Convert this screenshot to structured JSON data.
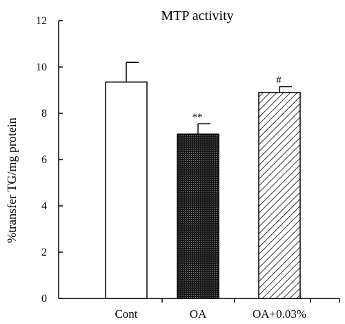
{
  "chart_data": {
    "type": "bar",
    "title": "MTP activity",
    "xlabel": "",
    "ylabel": "%transfer TG/mg protein",
    "ylim": [
      0,
      12
    ],
    "yticks": [
      0,
      2,
      4,
      6,
      8,
      10,
      12
    ],
    "categories": [
      "Cont",
      "OA",
      "OA+0.03%"
    ],
    "values": [
      9.35,
      7.1,
      8.9
    ],
    "errors": [
      0.85,
      0.45,
      0.25
    ],
    "annotations": [
      "",
      "**",
      "#"
    ],
    "fills": [
      "white",
      "dense-dots",
      "diagonal-hatch"
    ],
    "bar_edge_color": "#000000",
    "dark_fill_color": "#1a1a1a"
  }
}
